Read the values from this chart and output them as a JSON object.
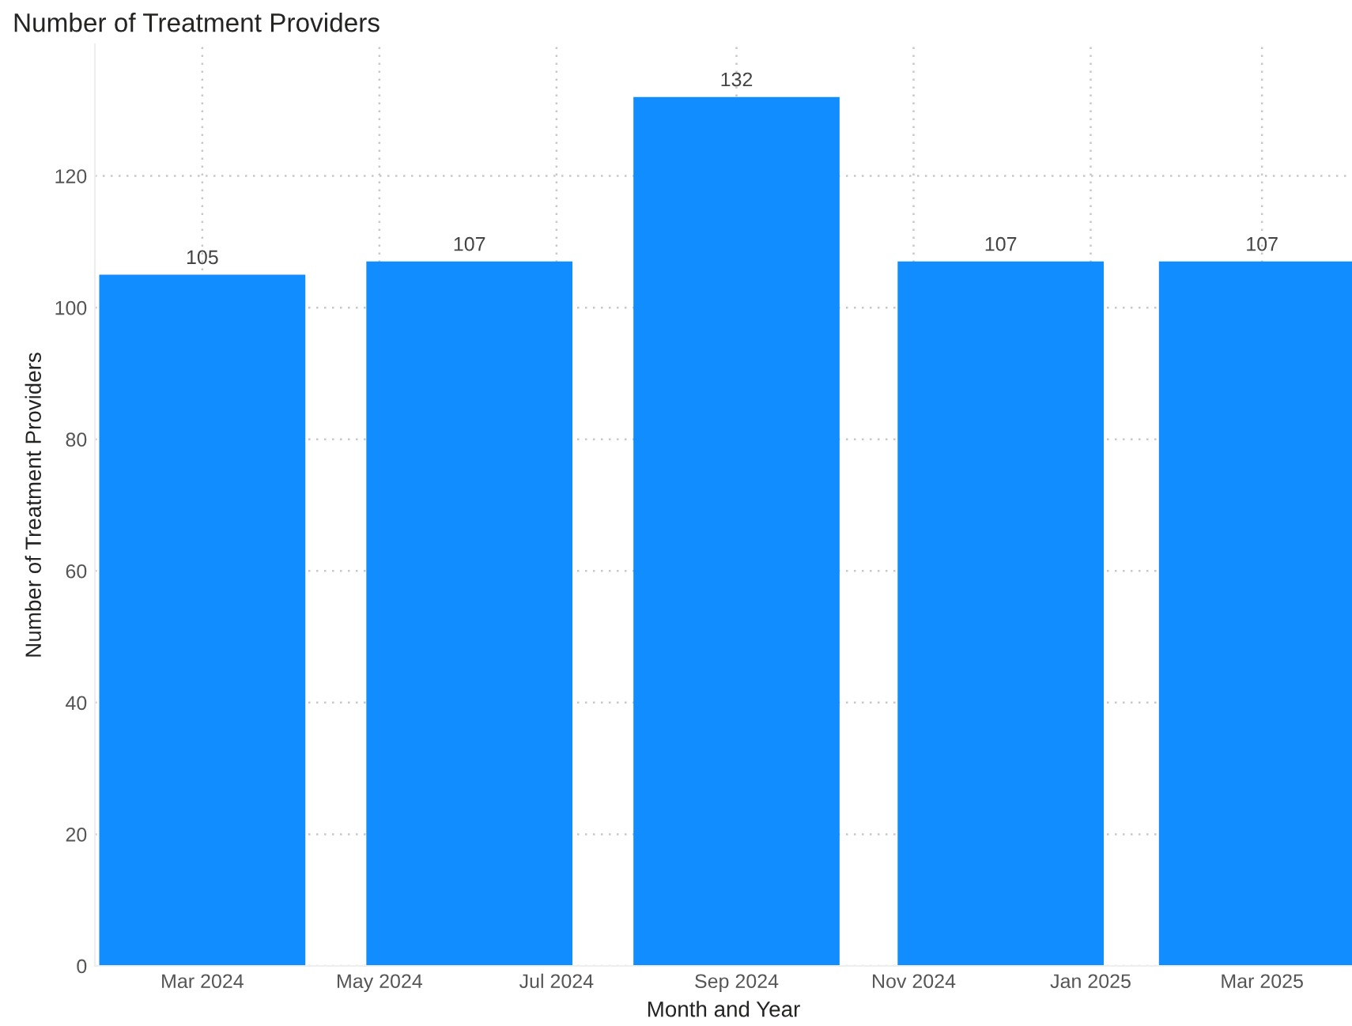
{
  "chart_data": {
    "type": "bar",
    "title": "Number of Treatment Providers",
    "xlabel": "Month and Year",
    "ylabel": "Number of Treatment Providers",
    "x": [
      "2024-03",
      "2024-06",
      "2024-09",
      "2024-12",
      "2025-03"
    ],
    "values": [
      105,
      107,
      132,
      107,
      107
    ],
    "color": "#118dff",
    "xlim": [
      "2024-01-24",
      "2025-04-01"
    ],
    "xticks": [
      {
        "value": "2024-03",
        "label": "Mar 2024"
      },
      {
        "value": "2024-05",
        "label": "May 2024"
      },
      {
        "value": "2024-07",
        "label": "Jul 2024"
      },
      {
        "value": "2024-09",
        "label": "Sep 2024"
      },
      {
        "value": "2024-11",
        "label": "Nov 2024"
      },
      {
        "value": "2025-01",
        "label": "Jan 2025"
      },
      {
        "value": "2025-03",
        "label": "Mar 2025"
      }
    ],
    "ylim": [
      0,
      140
    ],
    "yticks": [
      0,
      20,
      40,
      60,
      80,
      100,
      120
    ],
    "grid": true,
    "data_labels": true
  }
}
